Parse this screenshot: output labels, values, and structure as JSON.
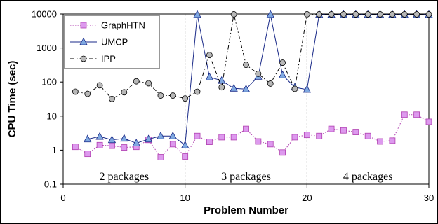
{
  "chart_data": {
    "type": "line",
    "xlabel": "Problem Number",
    "ylabel": "CPU Time (sec)",
    "xlim": [
      0,
      30
    ],
    "ylim": [
      0.1,
      10000
    ],
    "yscale": "log",
    "xticks": [
      "0",
      "10",
      "20",
      "30"
    ],
    "yticks": [
      "0.1",
      "1",
      "10",
      "100",
      "1000",
      "10000"
    ],
    "grid": false,
    "legend_position": "top-left",
    "separators": [
      10,
      20
    ],
    "annotations": [
      {
        "text": "2 packages",
        "x": 5
      },
      {
        "text": "3 packages",
        "x": 15
      },
      {
        "text": "4 packages",
        "x": 25
      }
    ],
    "series": [
      {
        "name": "GraphHTN",
        "marker": "square",
        "line_style": "dotted",
        "color": "#b03fb0",
        "fill": "#dd99ee",
        "x": [
          1,
          2,
          3,
          4,
          5,
          6,
          7,
          8,
          9,
          10,
          11,
          12,
          13,
          14,
          15,
          16,
          17,
          18,
          19,
          20,
          21,
          22,
          23,
          24,
          25,
          26,
          27,
          28,
          29,
          30
        ],
        "y": [
          1.25,
          0.78,
          1.4,
          1.35,
          1.2,
          1.25,
          2.0,
          0.62,
          1.5,
          0.65,
          2.6,
          1.75,
          2.4,
          2.4,
          4.2,
          1.8,
          1.5,
          0.85,
          2.4,
          2.8,
          2.6,
          4.2,
          3.8,
          3.4,
          2.6,
          1.8,
          1.9,
          11,
          11,
          6.8
        ]
      },
      {
        "name": "UMCP",
        "marker": "triangle",
        "line_style": "solid",
        "color": "#1a2a88",
        "fill": "#7fa8e0",
        "x": [
          1,
          2,
          3,
          4,
          5,
          6,
          7,
          8,
          9,
          10,
          11,
          12,
          13,
          14,
          15,
          16,
          17,
          18,
          19,
          20,
          21,
          22,
          23,
          24,
          25,
          26,
          27,
          28,
          29,
          30
        ],
        "y": [
          null,
          2.1,
          2.5,
          2.0,
          2.2,
          1.6,
          2.1,
          2.6,
          2.6,
          1.4,
          9600,
          140,
          110,
          65,
          62,
          145,
          9600,
          160,
          70,
          60,
          9600,
          9600,
          9600,
          9600,
          9600,
          9600,
          9600,
          9600,
          9600,
          9600
        ]
      },
      {
        "name": "IPP",
        "marker": "circle",
        "line_style": "dash-dot",
        "color": "#000000",
        "fill": "#b8b8b8",
        "x": [
          1,
          2,
          3,
          4,
          5,
          6,
          7,
          8,
          9,
          10,
          11,
          12,
          13,
          14,
          15,
          16,
          17,
          18,
          19,
          20,
          21,
          22,
          23,
          24,
          25,
          26,
          27,
          28,
          29,
          30
        ],
        "y": [
          52,
          45,
          80,
          32,
          50,
          105,
          92,
          40,
          40,
          33,
          52,
          620,
          70,
          9800,
          320,
          175,
          90,
          370,
          63,
          9800,
          9800,
          9800,
          9800,
          9800,
          9800,
          9800,
          9800,
          9800,
          9800,
          9800
        ]
      }
    ]
  }
}
